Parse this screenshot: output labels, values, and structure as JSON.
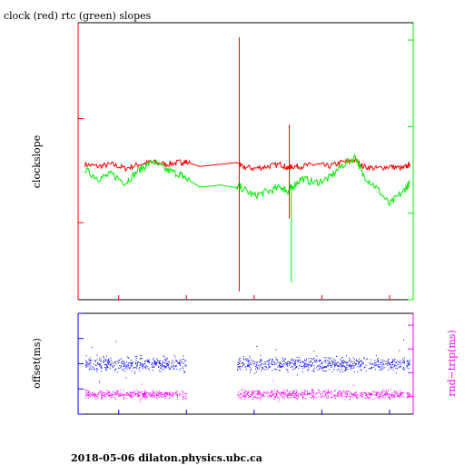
{
  "page": {
    "title": "clock (red) rtc (green) slopes",
    "footer": "2018-05-06  dilaton.physics.ubc.ca"
  },
  "colors": {
    "red": "#ff0000",
    "green": "#00ee00",
    "blue": "#0000ff",
    "magenta": "#ff00ff",
    "frame": "#000000"
  },
  "chart_data": [
    {
      "type": "line",
      "title": "clock (red) rtc (green) slopes",
      "ylabel": "clockslope",
      "xlim": [
        6.4,
        11.35
      ],
      "ylim": [
        -8.7,
        4.6
      ],
      "ylim_right": [
        6.0,
        12.4
      ],
      "x_ticks": [
        "7",
        "8",
        "9",
        "10",
        "11"
      ],
      "y_ticks_left": [
        "-5",
        "0"
      ],
      "y_ticks_right": [
        "6",
        "8",
        "10",
        "12"
      ],
      "series": [
        {
          "name": "clock",
          "color": "red",
          "axis": "left",
          "x": [
            6.5,
            6.7,
            6.9,
            7.1,
            7.3,
            7.5,
            7.7,
            7.9,
            8.0,
            8.2,
            8.5,
            8.78,
            8.8,
            9.0,
            9.2,
            9.4,
            9.5,
            9.55,
            9.7,
            9.9,
            10.1,
            10.3,
            10.5,
            10.6,
            10.8,
            11.0,
            11.2,
            11.3
          ],
          "y": [
            -2.2,
            -2.3,
            -2.2,
            -2.4,
            -2.2,
            -2.1,
            -2.2,
            -2.1,
            -2.1,
            -2.3,
            -2.2,
            -2.1,
            -2.3,
            -2.4,
            -2.3,
            -2.2,
            -2.4,
            -2.3,
            -2.3,
            -2.2,
            -2.3,
            -2.1,
            -2.0,
            -2.3,
            -2.4,
            -2.3,
            -2.4,
            -2.2
          ]
        },
        {
          "name": "rtc",
          "color": "green",
          "axis": "right",
          "x": [
            6.5,
            6.7,
            6.9,
            7.1,
            7.3,
            7.5,
            7.7,
            7.9,
            8.0,
            8.2,
            8.5,
            8.7,
            8.8,
            9.0,
            9.2,
            9.4,
            9.5,
            9.55,
            9.7,
            9.9,
            10.1,
            10.3,
            10.5,
            10.6,
            10.8,
            11.0,
            11.2,
            11.3
          ],
          "y": [
            9.0,
            8.8,
            8.9,
            8.7,
            9.0,
            9.2,
            9.0,
            8.9,
            8.8,
            8.6,
            8.65,
            8.6,
            8.6,
            8.4,
            8.5,
            8.6,
            8.5,
            8.6,
            8.8,
            8.7,
            8.8,
            9.1,
            9.3,
            8.9,
            8.6,
            8.2,
            8.5,
            8.7
          ]
        }
      ]
    },
    {
      "type": "scatter",
      "ylabel": "offset(ms)",
      "ylabel_right": "rnd−trip(ms)",
      "xlim": [
        6.4,
        11.35
      ],
      "ylim": [
        -0.2,
        0.2
      ],
      "ylim_right": [
        0.05,
        0.9
      ],
      "x_ticks": [
        "7",
        "8",
        "9",
        "10",
        "11"
      ],
      "y_ticks_left": [
        "−0.2",
        "−0.1",
        "0",
        "0.1",
        "0.2"
      ],
      "y_ticks_right": [
        "0.2",
        "0.4",
        "0.6",
        "0.8"
      ],
      "series": [
        {
          "name": "offset",
          "color": "blue",
          "axis": "left",
          "segments": [
            [
              6.5,
              8.0
            ],
            [
              8.75,
              11.3
            ]
          ],
          "center": 0.0,
          "spread": 0.02
        },
        {
          "name": "rnd-trip",
          "color": "magenta",
          "axis": "right",
          "segments": [
            [
              6.5,
              8.0
            ],
            [
              8.75,
              11.3
            ]
          ],
          "center": 0.22,
          "spread": 0.025
        }
      ]
    }
  ]
}
